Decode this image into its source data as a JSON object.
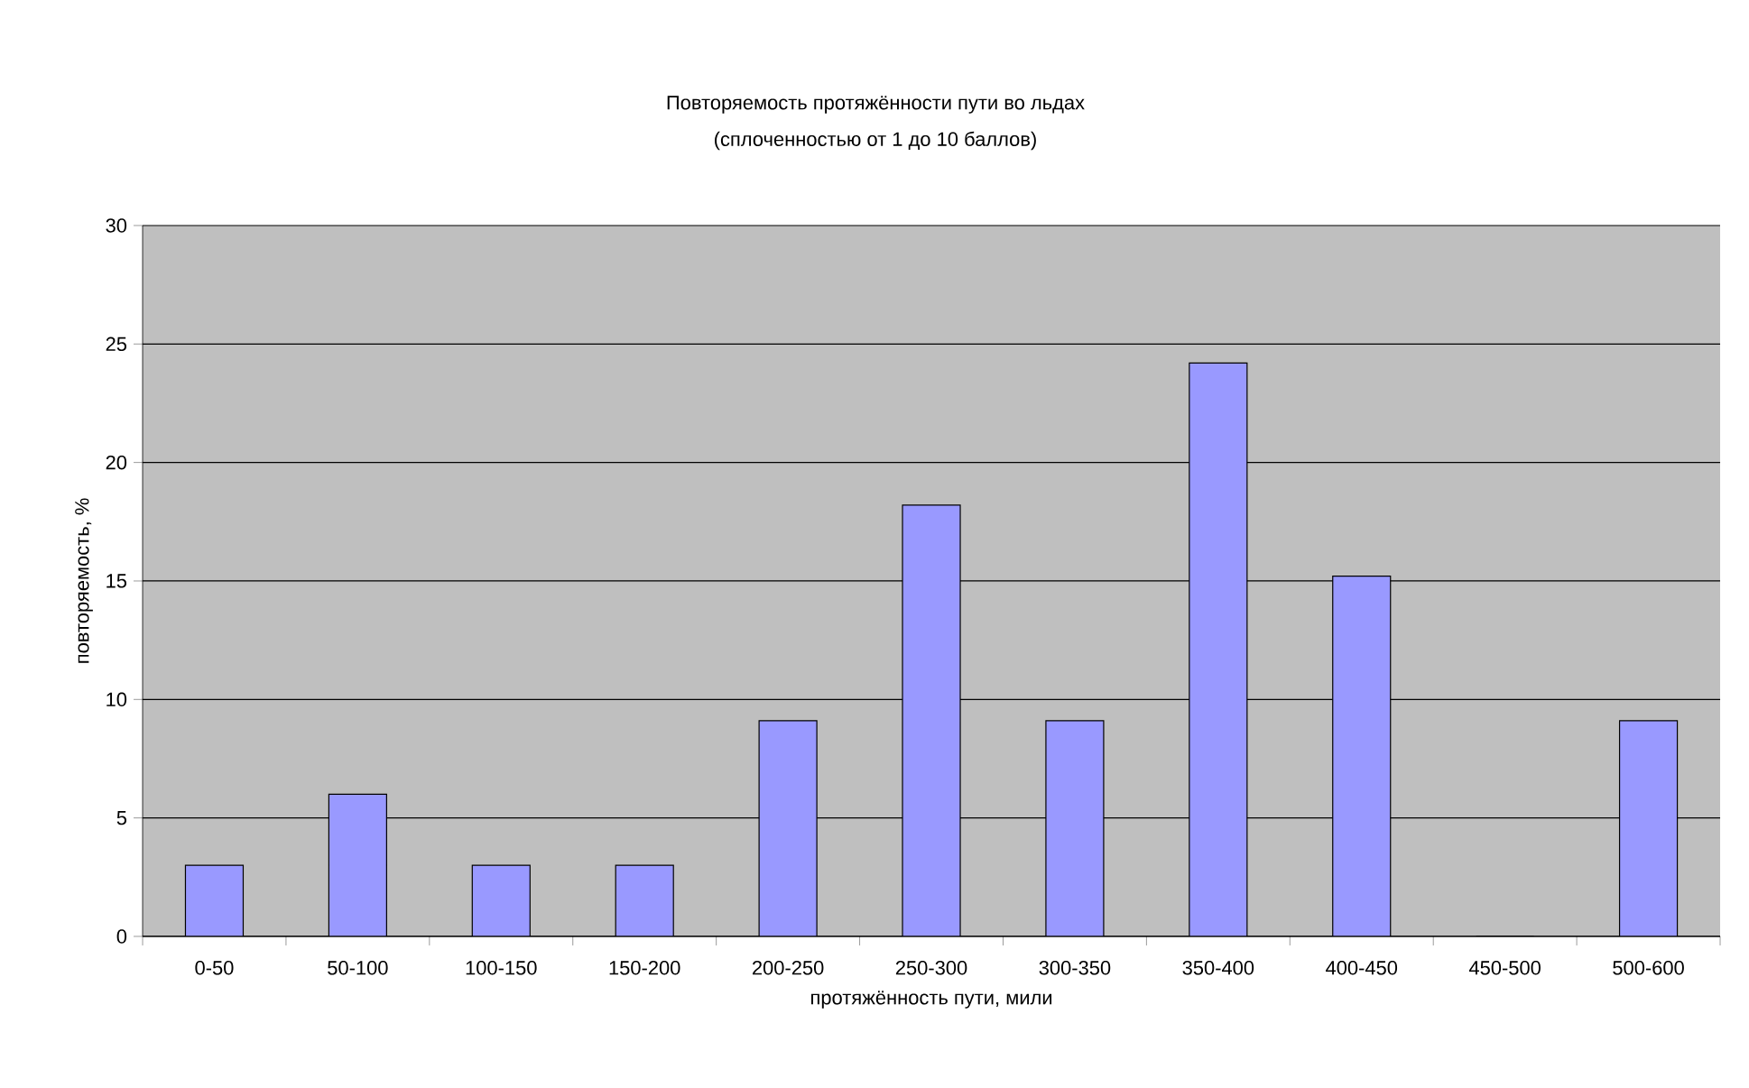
{
  "chart_data": {
    "type": "bar",
    "title": "Повторяемость протяжённости пути во льдах",
    "subtitle": "(сплоченностью от 1 до 10 баллов)",
    "xlabel": "протяжённость пути, мили",
    "ylabel": "повторяемость, %",
    "categories": [
      "0-50",
      "50-100",
      "100-150",
      "150-200",
      "200-250",
      "250-300",
      "300-350",
      "350-400",
      "400-450",
      "450-500",
      "500-600"
    ],
    "values": [
      3,
      6,
      3,
      3,
      9.1,
      18.2,
      9.1,
      24.2,
      15.2,
      0,
      9.1
    ],
    "color": "#9999ff",
    "ylim": [
      0,
      30
    ],
    "yticks": [
      0,
      5,
      10,
      15,
      20,
      25,
      30
    ],
    "grid": "y"
  }
}
